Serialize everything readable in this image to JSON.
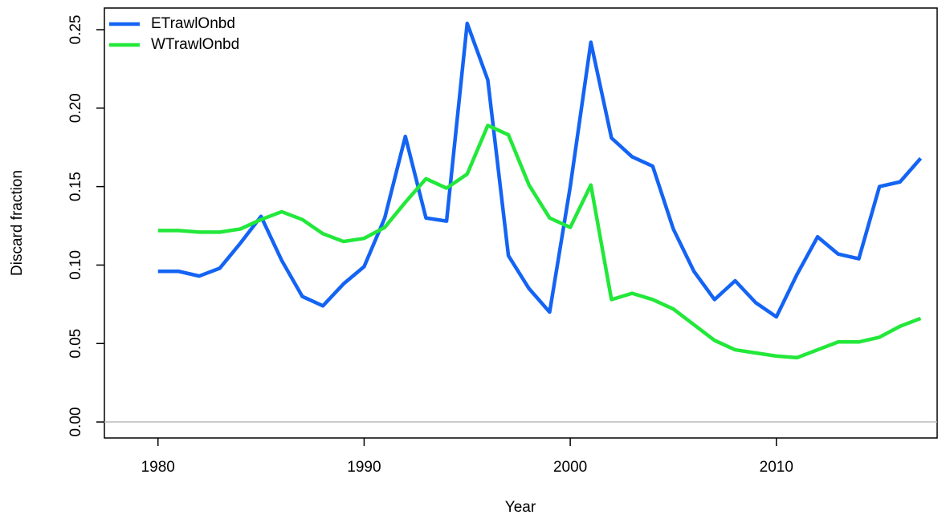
{
  "chart_data": {
    "type": "line",
    "x_label": "Year",
    "y_label": "Discard fraction",
    "x": [
      1980,
      1981,
      1982,
      1983,
      1984,
      1985,
      1986,
      1987,
      1988,
      1989,
      1990,
      1991,
      1992,
      1993,
      1994,
      1995,
      1996,
      1997,
      1998,
      1999,
      2000,
      2001,
      2002,
      2003,
      2004,
      2005,
      2006,
      2007,
      2008,
      2009,
      2010,
      2011,
      2012,
      2013,
      2014,
      2015,
      2016,
      2017
    ],
    "series": [
      {
        "name": "ETrawlOnbd",
        "color": "#1464f4",
        "values": [
          0.096,
          0.096,
          0.093,
          0.098,
          0.114,
          0.131,
          0.103,
          0.08,
          0.074,
          0.088,
          0.099,
          0.13,
          0.182,
          0.13,
          0.128,
          0.254,
          0.218,
          0.106,
          0.085,
          0.07,
          0.15,
          0.242,
          0.181,
          0.169,
          0.163,
          0.123,
          0.096,
          0.078,
          0.09,
          0.076,
          0.067,
          0.094,
          0.118,
          0.107,
          0.104,
          0.15,
          0.153,
          0.168
        ]
      },
      {
        "name": "WTrawlOnbd",
        "color": "#22e83a",
        "values": [
          0.122,
          0.122,
          0.121,
          0.121,
          0.123,
          0.129,
          0.134,
          0.129,
          0.12,
          0.115,
          0.117,
          0.124,
          0.14,
          0.155,
          0.149,
          0.158,
          0.189,
          0.183,
          0.151,
          0.13,
          0.124,
          0.151,
          0.078,
          0.082,
          0.078,
          0.072,
          0.062,
          0.052,
          0.046,
          0.044,
          0.042,
          0.041,
          0.046,
          0.051,
          0.051,
          0.054,
          0.061,
          0.066
        ]
      }
    ],
    "xlim": [
      1977.4,
      2017.8
    ],
    "xticks": [
      1980,
      1990,
      2000,
      2010
    ],
    "ylim": [
      -0.0102,
      0.2638
    ],
    "yticks": [
      {
        "value": 0,
        "label": "0.00"
      },
      0.05,
      {
        "value": 0.1,
        "label": "0.10"
      },
      0.15,
      {
        "value": 0.2,
        "label": "0.20"
      },
      0.25
    ],
    "reference_line": 0,
    "legend": "top-left"
  }
}
